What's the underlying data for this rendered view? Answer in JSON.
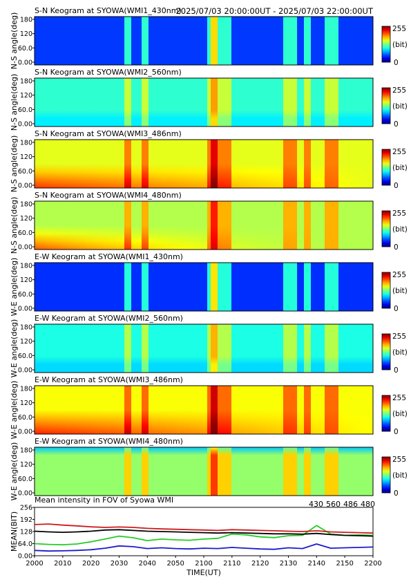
{
  "header": {
    "time_range": "2025/07/03 20:00:00UT - 2025/07/03 22:00:00UT"
  },
  "keograms": [
    {
      "title": "S-N Keogram at SYOWA(WMI1_430nm)",
      "ylabel": "N-S angle(deg)",
      "yticks": [
        "180",
        "120",
        "60.0",
        "0.00"
      ],
      "cb_max": "255",
      "cb_unit": "(bit)",
      "cb_min": "0",
      "base": 0.18,
      "features": "blue"
    },
    {
      "title": "S-N Keogram at SYOWA(WMI2_560nm)",
      "ylabel": "N-S angle(deg)",
      "yticks": [
        "180",
        "120",
        "60.0",
        "0.00"
      ],
      "cb_max": "255",
      "cb_unit": "(bit)",
      "cb_min": "0",
      "base": 0.42,
      "features": "green"
    },
    {
      "title": "S-N Keogram at SYOWA(WMI3_486nm)",
      "ylabel": "N-S angle(deg)",
      "yticks": [
        "180",
        "120",
        "60.0",
        "0.00"
      ],
      "cb_max": "255",
      "cb_unit": "(bit)",
      "cb_min": "0",
      "base": 0.6,
      "features": "warm"
    },
    {
      "title": "S-N Keogram at SYOWA(WMI4_480nm)",
      "ylabel": "N-S angle(deg)",
      "yticks": [
        "180",
        "120",
        "60.0",
        "0.00"
      ],
      "cb_max": "255",
      "cb_unit": "(bit)",
      "cb_min": "0",
      "base": 0.55,
      "features": "warm2"
    },
    {
      "title": "E-W Keogram at SYOWA(WMI1_430nm)",
      "ylabel": "W-E angle(deg)",
      "yticks": [
        "180",
        "120",
        "60.0",
        "0.00"
      ],
      "cb_max": "255",
      "cb_unit": "(bit)",
      "cb_min": "0",
      "base": 0.17,
      "features": "blue"
    },
    {
      "title": "E-W Keogram at SYOWA(WMI2_560nm)",
      "ylabel": "W-E angle(deg)",
      "yticks": [
        "180",
        "120",
        "60.0",
        "0.00"
      ],
      "cb_max": "255",
      "cb_unit": "(bit)",
      "cb_min": "0",
      "base": 0.4,
      "features": "green"
    },
    {
      "title": "E-W Keogram at SYOWA(WMI3_486nm)",
      "ylabel": "W-E angle(deg)",
      "yticks": [
        "180",
        "120",
        "60.0",
        "0.00"
      ],
      "cb_max": "255",
      "cb_unit": "(bit)",
      "cb_min": "0",
      "base": 0.62,
      "features": "warm"
    },
    {
      "title": "E-W Keogram at SYOWA(WMI4_480nm)",
      "ylabel": "W-E angle(deg)",
      "yticks": [
        "180",
        "120",
        "60.0",
        "0.00"
      ],
      "cb_max": "255",
      "cb_unit": "(bit)",
      "cb_min": "0",
      "base": 0.52,
      "features": "flat"
    }
  ],
  "chart_data": {
    "type": "line",
    "title": "Mean intensity in FOV of Syowa WMI",
    "xlabel": "TIME(UT)",
    "ylabel": "MEAN(BIT)",
    "xlim": [
      0,
      120
    ],
    "ylim": [
      0,
      256
    ],
    "x_tick_labels": [
      "2000",
      "2010",
      "2020",
      "2030",
      "2040",
      "2050",
      "2100",
      "2110",
      "2120",
      "2130",
      "2140",
      "2150",
      "2200"
    ],
    "y_tick_labels": [
      "256",
      "192",
      "128",
      "64.0",
      "0.00"
    ],
    "y_tick_values": [
      256,
      192,
      128,
      64,
      0
    ],
    "x": [
      0,
      5,
      10,
      15,
      20,
      25,
      30,
      35,
      40,
      45,
      50,
      55,
      60,
      65,
      70,
      75,
      80,
      85,
      90,
      95,
      100,
      105,
      110,
      115,
      120
    ],
    "series": [
      {
        "name": "430",
        "color": "#1a1acc",
        "values": [
          28,
          25,
          26,
          28,
          32,
          40,
          52,
          48,
          38,
          42,
          38,
          36,
          40,
          38,
          44,
          40,
          36,
          34,
          42,
          38,
          62,
          40,
          42,
          44,
          46
        ]
      },
      {
        "name": "560",
        "color": "#22cc22",
        "values": [
          64,
          60,
          58,
          62,
          74,
          88,
          104,
          95,
          80,
          88,
          84,
          82,
          88,
          92,
          115,
          110,
          100,
          96,
          106,
          108,
          160,
          115,
          108,
          110,
          108
        ]
      },
      {
        "name": "486",
        "color": "#cc1a1a",
        "values": [
          165,
          168,
          162,
          158,
          153,
          150,
          152,
          150,
          145,
          142,
          140,
          138,
          136,
          134,
          138,
          136,
          134,
          132,
          130,
          128,
          132,
          126,
          124,
          122,
          120
        ]
      },
      {
        "name": "480",
        "color": "#000000",
        "values": [
          130,
          126,
          124,
          126,
          130,
          136,
          138,
          134,
          130,
          128,
          126,
          124,
          122,
          120,
          122,
          120,
          118,
          116,
          116,
          114,
          118,
          112,
          108,
          106,
          104
        ]
      }
    ]
  }
}
